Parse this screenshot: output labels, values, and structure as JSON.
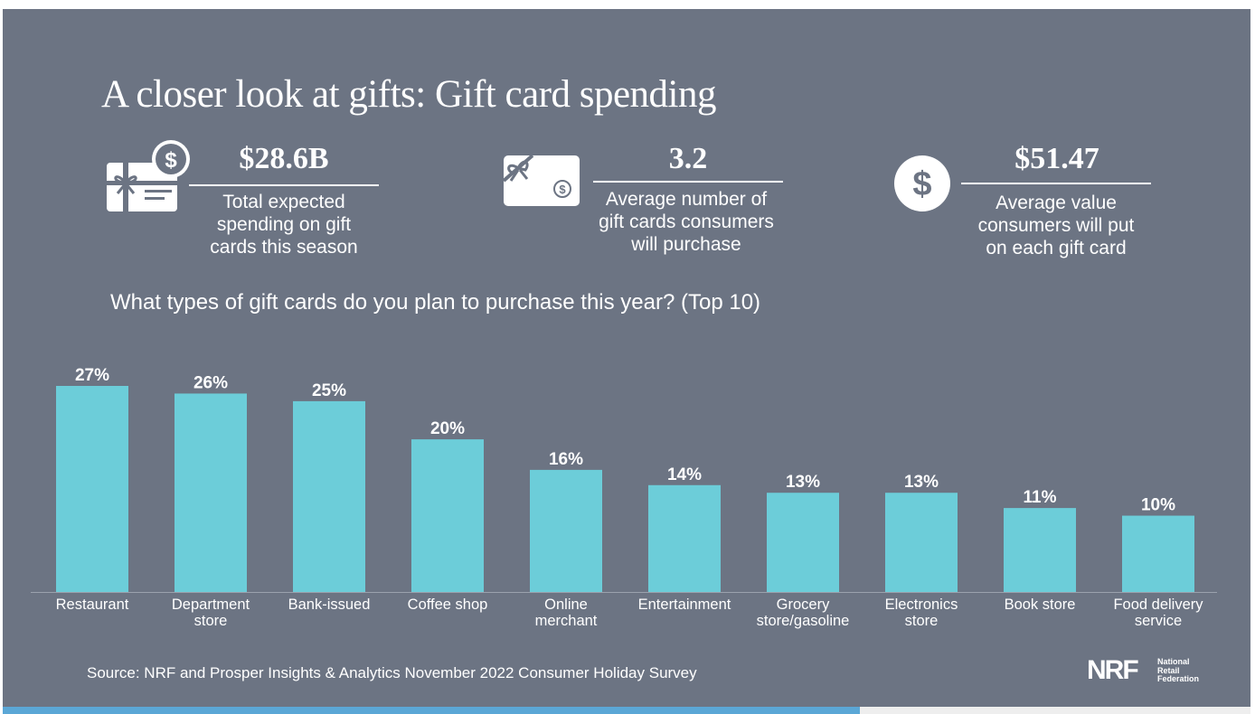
{
  "header": {
    "title": "A closer look at gifts: Gift card spending"
  },
  "stats": [
    {
      "value": "$28.6B",
      "desc_lines": [
        "Total expected",
        "spending on gift",
        "cards this season"
      ],
      "icon": "gift-card-dollar-icon"
    },
    {
      "value": "3.2",
      "desc_lines": [
        "Average number of",
        "gift cards consumers",
        "will purchase"
      ],
      "icon": "gift-card-bow-icon"
    },
    {
      "value": "$51.47",
      "desc_lines": [
        "Average value",
        "consumers will put",
        "on each gift card"
      ],
      "icon": "dollar-circle-icon"
    }
  ],
  "question": "What types of gift cards do you plan to purchase this year? (Top 10)",
  "chart_data": {
    "type": "bar",
    "categories": [
      [
        "Restaurant"
      ],
      [
        "Department",
        "store"
      ],
      [
        "Bank-issued"
      ],
      [
        "Coffee shop"
      ],
      [
        "Online",
        "merchant"
      ],
      [
        "Entertainment"
      ],
      [
        "Grocery",
        "store/gasoline"
      ],
      [
        "Electronics",
        "store"
      ],
      [
        "Book store"
      ],
      [
        "Food delivery",
        "service"
      ]
    ],
    "values": [
      27,
      26,
      25,
      20,
      16,
      14,
      13,
      13,
      11,
      10
    ],
    "value_labels": [
      "27%",
      "26%",
      "25%",
      "20%",
      "16%",
      "14%",
      "13%",
      "13%",
      "11%",
      "10%"
    ],
    "ylim": [
      0,
      27
    ],
    "bar_color": "#6ccdd9",
    "grid": false
  },
  "footer": {
    "source": "Source: NRF and Prosper Insights & Analytics November 2022 Consumer Holiday Survey",
    "logo_mark": "NRF",
    "logo_lines": [
      "National",
      "Retail",
      "Federation"
    ]
  },
  "colors": {
    "background": "#6c7483",
    "accent_bar": "#5ba7d6",
    "bar": "#6ccdd9",
    "text": "#ffffff"
  }
}
